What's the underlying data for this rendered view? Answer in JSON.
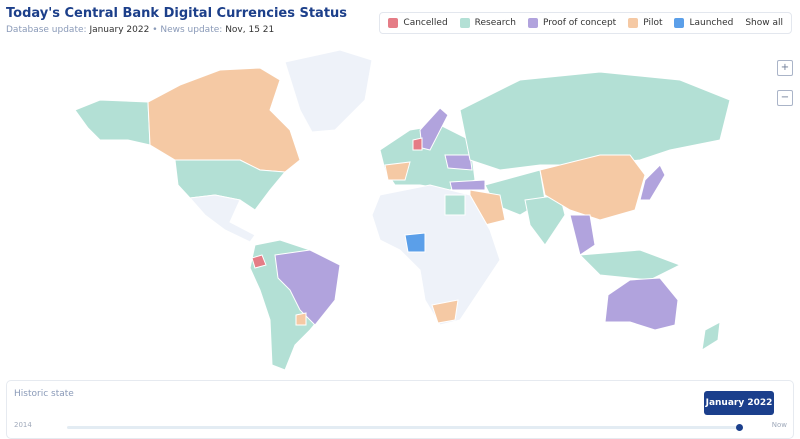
{
  "header": {
    "title": "Today's Central Bank Digital Currencies Status",
    "database_update_label": "Database update:",
    "database_update": "January 2022",
    "news_update_label": "News update:",
    "news_update": "Nov, 15 21"
  },
  "legend": {
    "items": [
      {
        "label": "Cancelled",
        "color": "#e57c86"
      },
      {
        "label": "Research",
        "color": "#b3e0d5"
      },
      {
        "label": "Proof of concept",
        "color": "#b1a3dd"
      },
      {
        "label": "Pilot",
        "color": "#f5c9a4"
      },
      {
        "label": "Launched",
        "color": "#5b9fe9"
      }
    ],
    "show_all": "Show all"
  },
  "map_controls": {
    "zoom_in": "+",
    "zoom_out": "−"
  },
  "timeline": {
    "title": "Historic state",
    "start": "2014",
    "end": "Now",
    "current": "January 2022"
  }
}
